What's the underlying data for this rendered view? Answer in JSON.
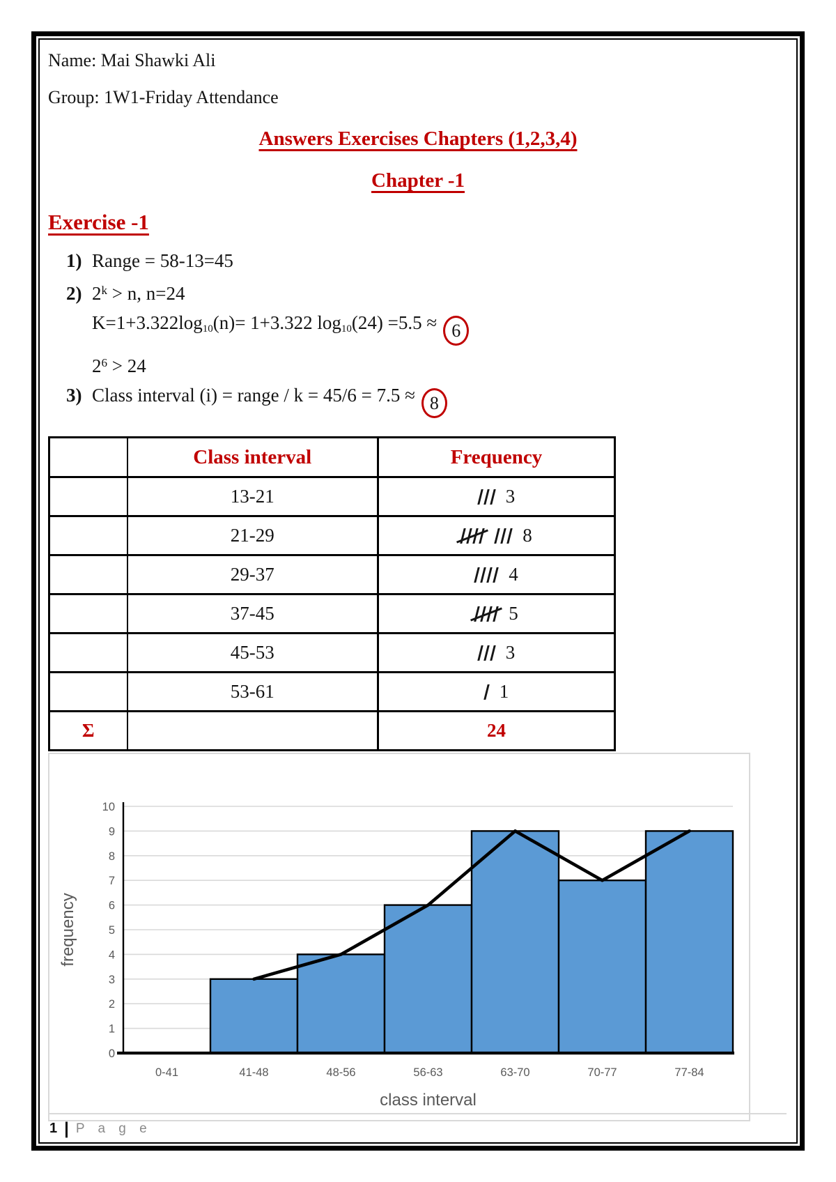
{
  "header": {
    "name_line": "Name: Mai Shawki Ali",
    "group_line": "Group: 1W1-Friday Attendance",
    "title": "Answers Exercises Chapters (1,2,3,4)",
    "chapter": "Chapter -1",
    "exercise": "Exercise -1"
  },
  "solutions": {
    "item1_num": "1)",
    "item1_text": "Range = 58-13=45",
    "item2_num": "2)",
    "item2_base": "2",
    "item2_sup": "k",
    "item2_rest": " > n, n=24",
    "k_p1": "K=1+3.322log",
    "k_sub1": "10",
    "k_p2": "(n)= 1+3.322 log",
    "k_sub2": "10",
    "k_p3": "(24) =5.5 ≈",
    "k_answer": "6",
    "pow_base": "2",
    "pow_sup": "6",
    "pow_rest": " > 24",
    "item3_num": "3)",
    "item3_text": "Class interval (i) = range / k = 45/6 = 7.5 ≈",
    "item3_answer": "8"
  },
  "table": {
    "headers": {
      "col1": "",
      "class_interval": "Class interval",
      "frequency": "Frequency"
    },
    "rows": [
      {
        "interval": "13-21",
        "tally_groups": [
          3
        ],
        "count": "3"
      },
      {
        "interval": "21-29",
        "tally_groups": [
          5,
          3
        ],
        "count": "8"
      },
      {
        "interval": "29-37",
        "tally_groups": [
          4
        ],
        "count": "4"
      },
      {
        "interval": "37-45",
        "tally_groups": [
          5
        ],
        "count": "5"
      },
      {
        "interval": "45-53",
        "tally_groups": [
          3
        ],
        "count": "3"
      },
      {
        "interval": "53-61",
        "tally_groups": [
          1
        ],
        "count": "1"
      }
    ],
    "sum_row": {
      "symbol": "Σ",
      "total": "24"
    }
  },
  "chart_data": {
    "type": "bar",
    "categories": [
      "0-41",
      "41-48",
      "48-56",
      "56-63",
      "63-70",
      "70-77",
      "77-84"
    ],
    "series": [
      {
        "name": "frequency histogram",
        "type": "bar",
        "values": [
          null,
          3,
          4,
          6,
          9,
          7,
          9
        ]
      },
      {
        "name": "frequency polygon",
        "type": "line",
        "values": [
          null,
          3,
          4,
          6,
          9,
          7,
          9
        ]
      }
    ],
    "title": "",
    "xlabel": "class interval",
    "ylabel": "frequency",
    "ylim": [
      0,
      10
    ],
    "ytick_step": 1,
    "grid": true,
    "legend": false,
    "bar_color": "#5b9ad5",
    "bar_stroke": "#000000",
    "line_color": "#000000",
    "grid_color": "#d9d9d9",
    "tick_color": "#595959"
  },
  "colors": {
    "accent_red": "#c00000",
    "bar_blue": "#5b9ad5"
  },
  "footer": {
    "page_number": "1",
    "divider": "|",
    "label": "P a g e"
  }
}
